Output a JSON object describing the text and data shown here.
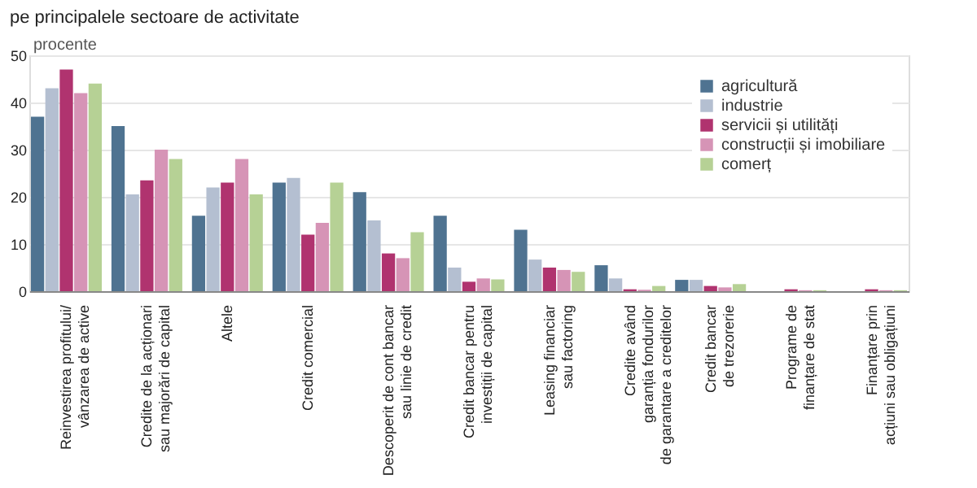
{
  "chart_data": {
    "type": "bar",
    "title": "pe principalele sectoare de activitate",
    "ylabel": "procente",
    "categories": [
      "Reinvestirea profitului/\nvânzarea de active",
      "Credite de la acționari\nsau majorări de capital",
      "Altele",
      "Credit comercial",
      "Descoperit de cont bancar\nsau linie de credit",
      "Credit bancar pentru\ninvestiții de capital",
      "Leasing financiar\nsau factoring",
      "Credite având\ngaranția fondurilor\nde garantare a creditelor",
      "Credit bancar\nde trezorerie",
      "Programe de\nfinanțare de stat",
      "Finanțare prin\nacțiuni sau obligațiuni"
    ],
    "series": [
      {
        "name": "agricultură",
        "color": "#4f7391",
        "values": [
          37,
          35,
          16,
          23,
          21,
          16,
          13,
          5.5,
          2.4,
          null,
          null
        ]
      },
      {
        "name": "industrie",
        "color": "#b4bfd1",
        "values": [
          43,
          20.5,
          22,
          24,
          15,
          5,
          6.7,
          2.7,
          2.4,
          null,
          null
        ]
      },
      {
        "name": "servicii și utilități",
        "color": "#b0336f",
        "values": [
          47,
          23.5,
          23,
          12,
          8,
          2,
          5,
          0.4,
          1.1,
          0.4,
          0.4
        ]
      },
      {
        "name": "construcții și imobiliare",
        "color": "#d694b6",
        "values": [
          42,
          30,
          28,
          14.5,
          7,
          2.7,
          4.5,
          0.3,
          0.8,
          0.2,
          0.2
        ]
      },
      {
        "name": "comerț",
        "color": "#b6d195",
        "values": [
          44,
          28,
          20.5,
          23,
          12.5,
          2.5,
          4.1,
          1.1,
          1.5,
          0.2,
          0.2
        ]
      }
    ],
    "ylim": [
      0,
      50
    ],
    "yticks": [
      0,
      10,
      20,
      30,
      40,
      50
    ],
    "grid": "y",
    "legend": "top right"
  }
}
